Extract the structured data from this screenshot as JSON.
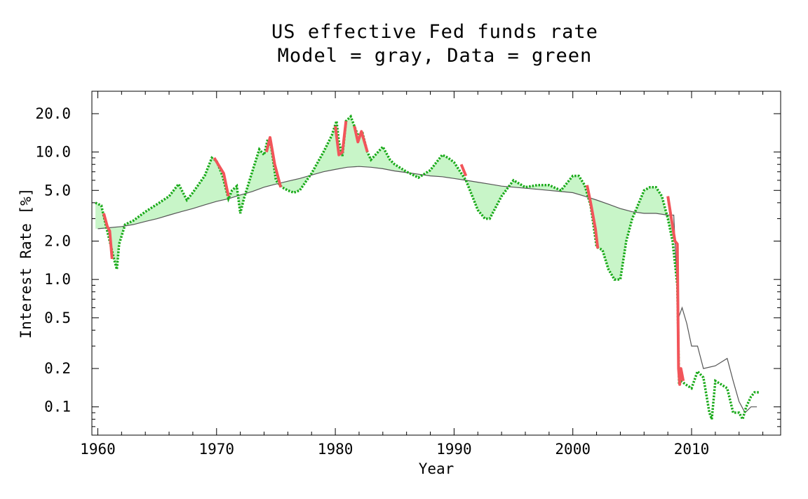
{
  "chart_data": {
    "type": "line",
    "title": "US effective Fed funds rate",
    "subtitle": "Model = gray, Data = green",
    "xlabel": "Year",
    "ylabel": "Interest Rate [%]",
    "xlim": [
      1959.5,
      2017.5
    ],
    "ylim": [
      0.06,
      30
    ],
    "y_scale": "log",
    "x_ticks": [
      1960,
      1970,
      1980,
      1990,
      2000,
      2010
    ],
    "x_tick_labels": [
      "1960",
      "1970",
      "1980",
      "1990",
      "2000",
      "2010"
    ],
    "y_ticks": [
      0.1,
      0.2,
      0.5,
      1.0,
      2.0,
      5.0,
      10.0,
      20.0
    ],
    "y_tick_labels": [
      "0.1",
      "0.2",
      "0.5",
      "1.0",
      "2.0",
      "5.0",
      "10.0",
      "20.0"
    ],
    "grid": false,
    "colors": {
      "model": "#555555",
      "data": "#1aaa1a",
      "fill": "#c8f5c8",
      "recession": "#f2555a"
    },
    "series": [
      {
        "name": "Model",
        "style": "gray thin line",
        "x": [
          1960,
          1961,
          1962,
          1963,
          1964,
          1965,
          1966,
          1967,
          1968,
          1969,
          1970,
          1971,
          1972,
          1973,
          1974,
          1975,
          1976,
          1977,
          1978,
          1979,
          1980,
          1981,
          1982,
          1983,
          1984,
          1985,
          1986,
          1987,
          1988,
          1989,
          1990,
          1991,
          1992,
          1993,
          1994,
          1995,
          1996,
          1997,
          1998,
          1999,
          2000,
          2001,
          2002,
          2003,
          2004,
          2005,
          2006,
          2007,
          2008,
          2008.5,
          2008.9,
          2009.2,
          2009.6,
          2010,
          2010.5,
          2011,
          2012,
          2013,
          2013.5,
          2014,
          2014.5,
          2015,
          2015.5
        ],
        "values": [
          2.5,
          2.55,
          2.6,
          2.7,
          2.85,
          3.0,
          3.2,
          3.4,
          3.6,
          3.85,
          4.1,
          4.3,
          4.6,
          4.9,
          5.3,
          5.6,
          5.9,
          6.2,
          6.6,
          7.0,
          7.3,
          7.6,
          7.7,
          7.6,
          7.4,
          7.1,
          6.9,
          6.7,
          6.5,
          6.4,
          6.2,
          6.0,
          5.8,
          5.6,
          5.4,
          5.3,
          5.2,
          5.1,
          5.0,
          4.9,
          4.8,
          4.5,
          4.2,
          3.9,
          3.6,
          3.4,
          3.3,
          3.3,
          3.2,
          3.2,
          0.5,
          0.6,
          0.45,
          0.3,
          0.3,
          0.2,
          0.21,
          0.24,
          0.16,
          0.11,
          0.09,
          0.1,
          0.1
        ]
      },
      {
        "name": "Data",
        "style": "green dotted line",
        "x": [
          1959.8,
          1960.3,
          1960.7,
          1961.0,
          1961.4,
          1961.6,
          1961.8,
          1962.3,
          1963,
          1964,
          1965,
          1966,
          1966.8,
          1967.5,
          1968,
          1969,
          1969.6,
          1970,
          1970.5,
          1971,
          1971.3,
          1971.7,
          1972,
          1972.3,
          1973,
          1973.6,
          1974,
          1974.3,
          1974.6,
          1975,
          1975.5,
          1976,
          1976.5,
          1977,
          1978,
          1979,
          1979.7,
          1980.1,
          1980.3,
          1980.6,
          1980.9,
          1981.3,
          1981.6,
          1981.9,
          1982.3,
          1982.7,
          1983,
          1984,
          1984.6,
          1985,
          1986,
          1987,
          1988,
          1989,
          1989.5,
          1990,
          1991,
          1992,
          1992.6,
          1993,
          1994,
          1995,
          1996,
          1997,
          1998,
          1999,
          2000,
          2000.5,
          2001,
          2001.5,
          2002,
          2002.5,
          2003,
          2003.5,
          2004,
          2004.5,
          2005,
          2006,
          2006.5,
          2007,
          2007.5,
          2008,
          2008.4,
          2008.8,
          2008.95,
          2009.1,
          2009.5,
          2010,
          2010.5,
          2011,
          2011.5,
          2011.7,
          2012,
          2012.5,
          2013,
          2013.5,
          2014,
          2014.3,
          2014.6,
          2015,
          2015.3,
          2015.7
        ],
        "values": [
          4.0,
          3.8,
          2.6,
          2.0,
          1.4,
          1.2,
          1.9,
          2.7,
          2.9,
          3.4,
          3.9,
          4.5,
          5.6,
          4.2,
          4.8,
          6.5,
          9.0,
          8.5,
          6.5,
          4.3,
          5.0,
          5.4,
          3.3,
          4.3,
          7.0,
          10.5,
          9.5,
          12.5,
          11.0,
          6.0,
          5.3,
          5.0,
          4.8,
          5.0,
          6.8,
          10.0,
          13.5,
          17.5,
          12.0,
          9.3,
          17.5,
          19.0,
          16.0,
          13.5,
          14.0,
          10.0,
          8.7,
          11.0,
          8.7,
          8.0,
          7.0,
          6.3,
          7.2,
          9.5,
          9.0,
          8.3,
          6.0,
          3.5,
          3.0,
          3.0,
          4.5,
          6.0,
          5.3,
          5.5,
          5.5,
          5.0,
          6.5,
          6.5,
          5.5,
          3.8,
          1.8,
          1.7,
          1.2,
          1.0,
          1.0,
          2.0,
          3.0,
          5.0,
          5.3,
          5.3,
          4.5,
          3.0,
          2.0,
          0.9,
          0.15,
          0.16,
          0.15,
          0.14,
          0.19,
          0.17,
          0.09,
          0.08,
          0.16,
          0.15,
          0.14,
          0.09,
          0.09,
          0.08,
          0.1,
          0.12,
          0.13,
          0.13
        ]
      }
    ],
    "recession_segments": [
      {
        "x": [
          1960.5,
          1960.8,
          1961.0,
          1961.2
        ],
        "values": [
          3.3,
          2.6,
          2.4,
          1.45
        ]
      },
      {
        "x": [
          1969.8,
          1970.2,
          1970.6,
          1971.0
        ],
        "values": [
          9.0,
          7.8,
          6.8,
          4.5
        ]
      },
      {
        "x": [
          1974.2,
          1974.5,
          1974.9,
          1975.4
        ],
        "values": [
          10.0,
          13.0,
          8.0,
          5.3
        ]
      },
      {
        "x": [
          1980.0,
          1980.3,
          1980.6,
          1980.9
        ],
        "values": [
          16.0,
          9.5,
          10.0,
          17.5
        ]
      },
      {
        "x": [
          1981.6,
          1981.9,
          1982.2,
          1982.7
        ],
        "values": [
          16.0,
          12.0,
          14.5,
          10.0
        ]
      },
      {
        "x": [
          1990.6,
          1991.0
        ],
        "values": [
          8.0,
          6.5
        ]
      },
      {
        "x": [
          2001.2,
          2001.5,
          2001.9,
          2002.1
        ],
        "values": [
          5.5,
          4.0,
          2.5,
          1.75
        ]
      },
      {
        "x": [
          2008.0,
          2008.3,
          2008.6,
          2008.8,
          2008.9,
          2009.0,
          2009.1,
          2009.3
        ],
        "values": [
          4.5,
          3.0,
          2.0,
          1.9,
          0.2,
          0.15,
          0.2,
          0.16
        ]
      }
    ],
    "shading": "light green fill between model and data where data is above model"
  }
}
